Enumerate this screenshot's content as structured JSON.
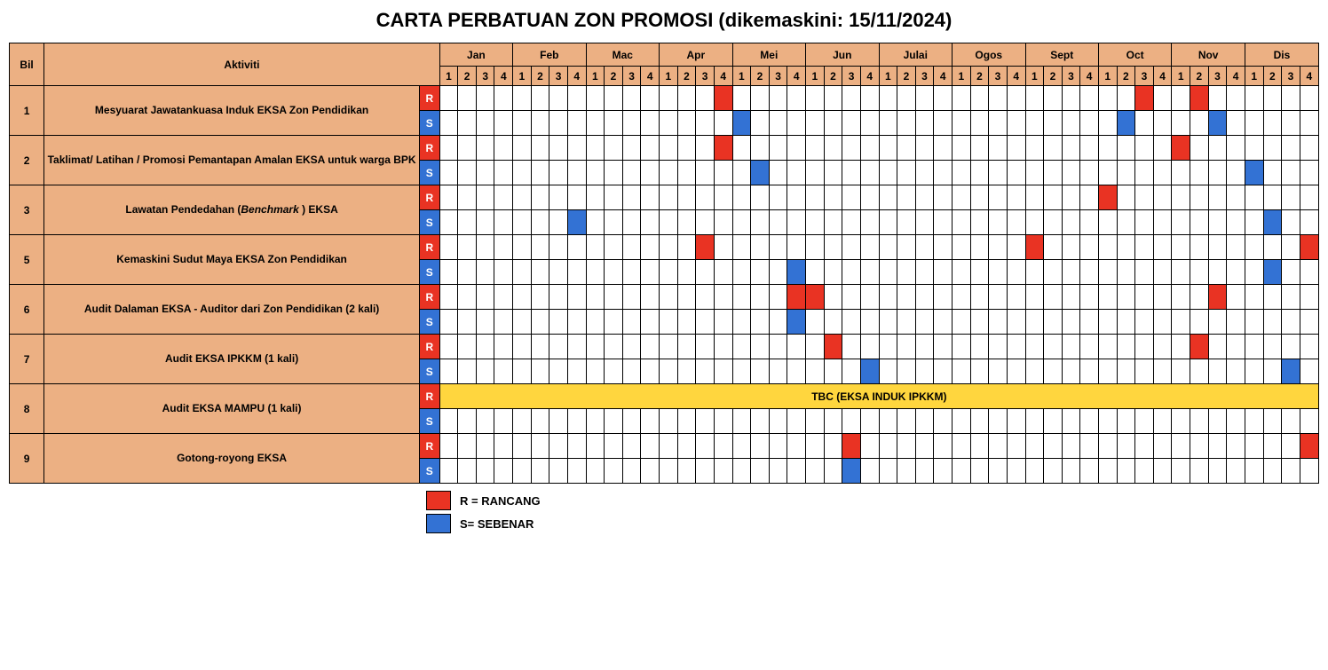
{
  "title": "CARTA PERBATUAN ZON PROMOSI (dikemaskini: 15/11/2024)",
  "header": {
    "bil": "Bil",
    "aktiviti": "Aktiviti"
  },
  "months": [
    "Jan",
    "Feb",
    "Mac",
    "Apr",
    "Mei",
    "Jun",
    "Julai",
    "Ogos",
    "Sept",
    "Oct",
    "Nov",
    "Dis"
  ],
  "weeks": [
    "1",
    "2",
    "3",
    "4"
  ],
  "rs": {
    "r": "R",
    "s": "S"
  },
  "colors": {
    "header_bg": "#ecb083",
    "r_fill": "#e93323",
    "s_fill": "#3372d4",
    "tbc_fill": "#ffd63e",
    "grid_bg": "#ffffff",
    "border": "#000000"
  },
  "tbc_text": "TBC (EKSA INDUK IPKKM)",
  "legend": {
    "r": "R = RANCANG",
    "s": "S= SEBENAR"
  },
  "activities": [
    {
      "bil": "1",
      "name": "Mesyuarat Jawatankuasa Induk EKSA  Zon Pendidikan",
      "r": [
        [
          4,
          4
        ],
        [
          10,
          3
        ],
        [
          11,
          2
        ]
      ],
      "s": [
        [
          5,
          1
        ],
        [
          10,
          2
        ],
        [
          11,
          3
        ]
      ]
    },
    {
      "bil": "2",
      "name": "Taklimat/ Latihan / Promosi Pemantapan Amalan EKSA untuk warga BPK",
      "r": [
        [
          4,
          4
        ],
        [
          11,
          1
        ]
      ],
      "s": [
        [
          5,
          2
        ],
        [
          12,
          1
        ]
      ]
    },
    {
      "bil": "3",
      "name": "Lawatan Pendedahan (Benchmark ) EKSA",
      "r": [
        [
          10,
          1
        ]
      ],
      "s": [
        [
          2,
          4
        ],
        [
          12,
          2
        ]
      ]
    },
    {
      "bil": "5",
      "name": "Kemaskini Sudut Maya EKSA Zon Pendidikan",
      "r": [
        [
          4,
          3
        ],
        [
          9,
          1
        ],
        [
          12,
          4
        ]
      ],
      "s": [
        [
          5,
          4
        ],
        [
          12,
          2
        ]
      ]
    },
    {
      "bil": "6",
      "name": "Audit Dalaman EKSA - Auditor dari Zon Pendidikan (2 kali)",
      "r": [
        [
          5,
          4
        ],
        [
          6,
          1
        ],
        [
          11,
          3
        ]
      ],
      "s": [
        [
          5,
          4
        ]
      ]
    },
    {
      "bil": "7",
      "name": "Audit EKSA IPKKM (1 kali)",
      "r": [
        [
          6,
          2
        ],
        [
          11,
          2
        ]
      ],
      "s": [
        [
          6,
          4
        ],
        [
          12,
          3
        ]
      ]
    },
    {
      "bil": "8",
      "name": "Audit EKSA MAMPU (1 kali)",
      "r_tbc": true,
      "r": [],
      "s": []
    },
    {
      "bil": "9",
      "name": "Gotong-royong EKSA",
      "r": [
        [
          6,
          3
        ],
        [
          12,
          4
        ]
      ],
      "s": [
        [
          6,
          3
        ]
      ]
    }
  ]
}
